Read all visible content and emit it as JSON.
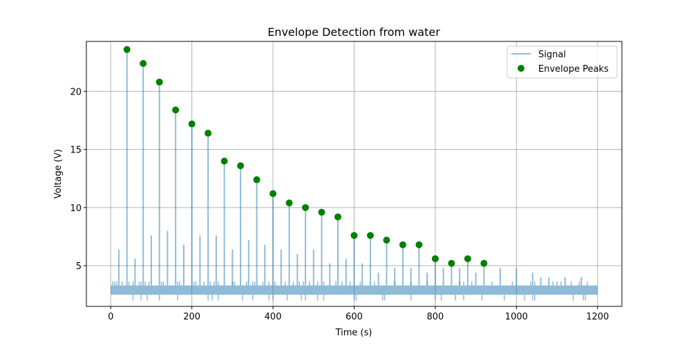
{
  "chart_data": {
    "type": "line",
    "title": "Envelope Detection from water",
    "xlabel": "Time (s)",
    "ylabel": "Voltage (V)",
    "xlim": [
      -60,
      1260
    ],
    "ylim": [
      1.5,
      24.3
    ],
    "xticks": [
      0,
      200,
      400,
      600,
      800,
      1000,
      1200
    ],
    "yticks": [
      5,
      10,
      15,
      20
    ],
    "grid": true,
    "legend_position": "top-right",
    "colors": {
      "signal": "#1f77b4",
      "peaks": "#008000"
    },
    "band": {
      "x_start": 0,
      "x_end": 1200,
      "y_low": 2.5,
      "y_high": 3.3
    },
    "series": [
      {
        "name": "Signal",
        "kind": "line",
        "spikes": [
          {
            "x": 20,
            "y": 6.4
          },
          {
            "x": 40,
            "y": 23.6
          },
          {
            "x": 60,
            "y": 5.6
          },
          {
            "x": 80,
            "y": 22.4
          },
          {
            "x": 100,
            "y": 7.6
          },
          {
            "x": 120,
            "y": 20.8
          },
          {
            "x": 140,
            "y": 8.0
          },
          {
            "x": 160,
            "y": 18.4
          },
          {
            "x": 180,
            "y": 6.8
          },
          {
            "x": 200,
            "y": 17.2
          },
          {
            "x": 220,
            "y": 7.6
          },
          {
            "x": 240,
            "y": 16.4
          },
          {
            "x": 260,
            "y": 7.6
          },
          {
            "x": 280,
            "y": 14.0
          },
          {
            "x": 300,
            "y": 6.4
          },
          {
            "x": 320,
            "y": 13.6
          },
          {
            "x": 340,
            "y": 7.2
          },
          {
            "x": 360,
            "y": 12.4
          },
          {
            "x": 380,
            "y": 6.8
          },
          {
            "x": 400,
            "y": 11.2
          },
          {
            "x": 420,
            "y": 6.4
          },
          {
            "x": 440,
            "y": 10.4
          },
          {
            "x": 460,
            "y": 6.0
          },
          {
            "x": 480,
            "y": 10.0
          },
          {
            "x": 500,
            "y": 6.4
          },
          {
            "x": 520,
            "y": 9.6
          },
          {
            "x": 540,
            "y": 5.2
          },
          {
            "x": 560,
            "y": 9.2
          },
          {
            "x": 580,
            "y": 5.6
          },
          {
            "x": 600,
            "y": 7.6
          },
          {
            "x": 620,
            "y": 5.2
          },
          {
            "x": 640,
            "y": 7.6
          },
          {
            "x": 660,
            "y": 4.4
          },
          {
            "x": 680,
            "y": 7.2
          },
          {
            "x": 700,
            "y": 4.8
          },
          {
            "x": 720,
            "y": 6.8
          },
          {
            "x": 740,
            "y": 4.8
          },
          {
            "x": 760,
            "y": 6.8
          },
          {
            "x": 780,
            "y": 4.4
          },
          {
            "x": 800,
            "y": 5.6
          },
          {
            "x": 820,
            "y": 4.8
          },
          {
            "x": 840,
            "y": 5.2
          },
          {
            "x": 860,
            "y": 4.8
          },
          {
            "x": 880,
            "y": 5.6
          },
          {
            "x": 900,
            "y": 4.4
          },
          {
            "x": 920,
            "y": 5.2
          },
          {
            "x": 960,
            "y": 4.8
          },
          {
            "x": 1000,
            "y": 4.8
          },
          {
            "x": 1040,
            "y": 4.4
          },
          {
            "x": 1060,
            "y": 4.0
          },
          {
            "x": 1080,
            "y": 4.0
          },
          {
            "x": 1120,
            "y": 4.0
          },
          {
            "x": 1160,
            "y": 4.0
          }
        ],
        "small_spikes_up": [
          5,
          10,
          15,
          28,
          45,
          55,
          70,
          75,
          85,
          95,
          125,
          130,
          165,
          170,
          205,
          210,
          230,
          245,
          255,
          265,
          300,
          305,
          335,
          350,
          355,
          375,
          390,
          405,
          430,
          450,
          465,
          475,
          490,
          510,
          525,
          555,
          570,
          590,
          615,
          650,
          700,
          740,
          780,
          860,
          870,
          890,
          940,
          990,
          1035,
          1045,
          1090,
          1100,
          1110,
          1135,
          1155,
          1175
        ],
        "small_spikes_down": [
          55,
          75,
          90,
          120,
          165,
          240,
          250,
          265,
          325,
          350,
          390,
          400,
          435,
          470,
          480,
          510,
          525,
          600,
          605,
          670,
          675,
          740,
          800,
          815,
          850,
          870,
          915,
          970,
          1020,
          1040,
          1045,
          1140,
          1165,
          1170
        ]
      },
      {
        "name": "Envelope Peaks",
        "kind": "scatter",
        "points": [
          {
            "x": 40,
            "y": 23.6
          },
          {
            "x": 80,
            "y": 22.4
          },
          {
            "x": 120,
            "y": 20.8
          },
          {
            "x": 160,
            "y": 18.4
          },
          {
            "x": 200,
            "y": 17.2
          },
          {
            "x": 240,
            "y": 16.4
          },
          {
            "x": 280,
            "y": 14.0
          },
          {
            "x": 320,
            "y": 13.6
          },
          {
            "x": 360,
            "y": 12.4
          },
          {
            "x": 400,
            "y": 11.2
          },
          {
            "x": 440,
            "y": 10.4
          },
          {
            "x": 480,
            "y": 10.0
          },
          {
            "x": 520,
            "y": 9.6
          },
          {
            "x": 560,
            "y": 9.2
          },
          {
            "x": 600,
            "y": 7.6
          },
          {
            "x": 640,
            "y": 7.6
          },
          {
            "x": 680,
            "y": 7.2
          },
          {
            "x": 720,
            "y": 6.8
          },
          {
            "x": 760,
            "y": 6.8
          },
          {
            "x": 800,
            "y": 5.6
          },
          {
            "x": 840,
            "y": 5.2
          },
          {
            "x": 880,
            "y": 5.6
          },
          {
            "x": 920,
            "y": 5.2
          }
        ]
      }
    ]
  }
}
